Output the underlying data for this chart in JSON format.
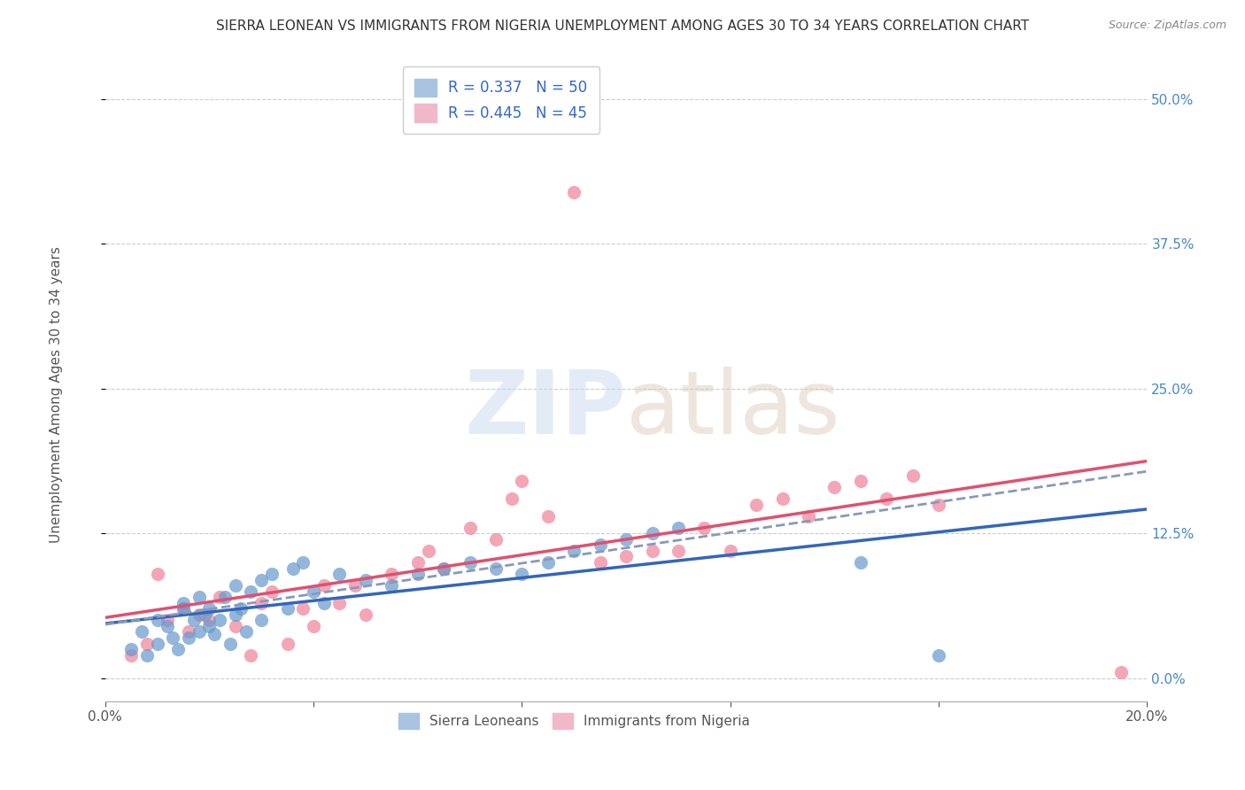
{
  "title": "SIERRA LEONEAN VS IMMIGRANTS FROM NIGERIA UNEMPLOYMENT AMONG AGES 30 TO 34 YEARS CORRELATION CHART",
  "source": "Source: ZipAtlas.com",
  "ylabel": "Unemployment Among Ages 30 to 34 years",
  "xlim": [
    0.0,
    0.2
  ],
  "ylim": [
    -0.02,
    0.54
  ],
  "ytick_labels": [
    "0.0%",
    "12.5%",
    "25.0%",
    "37.5%",
    "50.0%"
  ],
  "ytick_values": [
    0.0,
    0.125,
    0.25,
    0.375,
    0.5
  ],
  "xtick_labels": [
    "0.0%",
    "",
    "",
    "",
    "",
    "20.0%"
  ],
  "xtick_values": [
    0.0,
    0.04,
    0.08,
    0.12,
    0.16,
    0.2
  ],
  "sierra_x": [
    0.005,
    0.007,
    0.008,
    0.01,
    0.01,
    0.012,
    0.013,
    0.014,
    0.015,
    0.015,
    0.016,
    0.017,
    0.018,
    0.018,
    0.019,
    0.02,
    0.02,
    0.021,
    0.022,
    0.023,
    0.024,
    0.025,
    0.025,
    0.026,
    0.027,
    0.028,
    0.03,
    0.03,
    0.032,
    0.035,
    0.036,
    0.038,
    0.04,
    0.042,
    0.045,
    0.05,
    0.055,
    0.06,
    0.065,
    0.07,
    0.075,
    0.08,
    0.085,
    0.09,
    0.095,
    0.1,
    0.105,
    0.11,
    0.145,
    0.16
  ],
  "sierra_y": [
    0.025,
    0.04,
    0.02,
    0.03,
    0.05,
    0.045,
    0.035,
    0.025,
    0.065,
    0.06,
    0.035,
    0.05,
    0.04,
    0.07,
    0.055,
    0.045,
    0.06,
    0.038,
    0.05,
    0.07,
    0.03,
    0.055,
    0.08,
    0.06,
    0.04,
    0.075,
    0.085,
    0.05,
    0.09,
    0.06,
    0.095,
    0.1,
    0.075,
    0.065,
    0.09,
    0.085,
    0.08,
    0.09,
    0.095,
    0.1,
    0.095,
    0.09,
    0.1,
    0.11,
    0.115,
    0.12,
    0.125,
    0.13,
    0.1,
    0.02
  ],
  "nigeria_x": [
    0.005,
    0.008,
    0.01,
    0.012,
    0.015,
    0.016,
    0.018,
    0.02,
    0.022,
    0.025,
    0.028,
    0.03,
    0.032,
    0.035,
    0.038,
    0.04,
    0.042,
    0.045,
    0.048,
    0.05,
    0.055,
    0.06,
    0.062,
    0.065,
    0.07,
    0.075,
    0.078,
    0.08,
    0.085,
    0.09,
    0.095,
    0.1,
    0.105,
    0.11,
    0.115,
    0.12,
    0.125,
    0.13,
    0.135,
    0.14,
    0.145,
    0.15,
    0.155,
    0.16,
    0.195
  ],
  "nigeria_y": [
    0.02,
    0.03,
    0.09,
    0.05,
    0.06,
    0.04,
    0.055,
    0.05,
    0.07,
    0.045,
    0.02,
    0.065,
    0.075,
    0.03,
    0.06,
    0.045,
    0.08,
    0.065,
    0.08,
    0.055,
    0.09,
    0.1,
    0.11,
    0.095,
    0.13,
    0.12,
    0.155,
    0.17,
    0.14,
    0.42,
    0.1,
    0.105,
    0.11,
    0.11,
    0.13,
    0.11,
    0.15,
    0.155,
    0.14,
    0.165,
    0.17,
    0.155,
    0.175,
    0.15,
    0.005
  ],
  "sierra_color": "#6699cc",
  "nigeria_color": "#f08098",
  "sierra_line_color": "#3366bb",
  "nigeria_line_color": "#e05070",
  "background_color": "#ffffff",
  "grid_color": "#cccccc",
  "title_color": "#333333",
  "label_color": "#555555",
  "right_axis_color": "#4488cc"
}
